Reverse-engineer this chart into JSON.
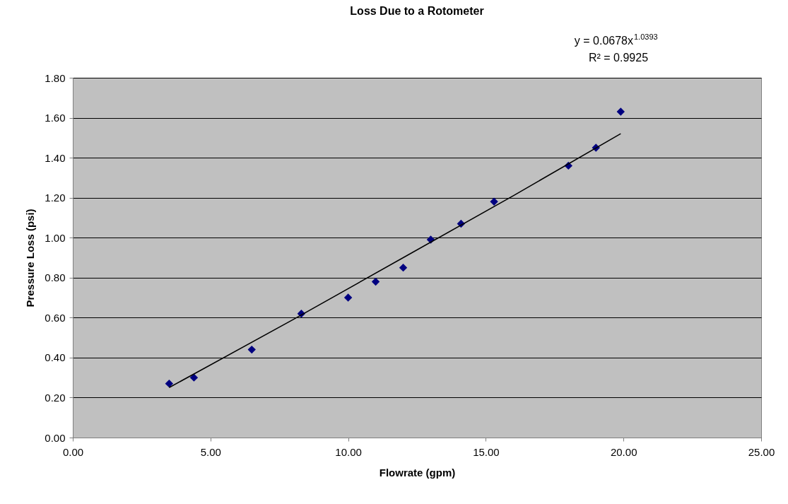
{
  "chart_data": {
    "type": "scatter",
    "title": "Loss Due to a Rotometer",
    "xlabel": "Flowrate (gpm)",
    "ylabel": "Pressure Loss (psi)",
    "annotations": [
      "y = 0.0678x$^{1.0393}$",
      "R² = 0.9925"
    ],
    "xlim": [
      0,
      25
    ],
    "ylim": [
      0,
      1.8
    ],
    "xticks": [
      {
        "value": 0,
        "label": "0.00"
      },
      {
        "value": 5,
        "label": "5.00"
      },
      {
        "value": 10,
        "label": "10.00"
      },
      {
        "value": 15,
        "label": "15.00"
      },
      {
        "value": 20,
        "label": "20.00"
      },
      {
        "value": 25,
        "label": "25.00"
      }
    ],
    "yticks": [
      {
        "value": 0,
        "label": "0.00"
      },
      {
        "value": 0.2,
        "label": "0.20"
      },
      {
        "value": 0.4,
        "label": "0.40"
      },
      {
        "value": 0.6,
        "label": "0.60"
      },
      {
        "value": 0.8,
        "label": "0.80"
      },
      {
        "value": 1.0,
        "label": "1.00"
      },
      {
        "value": 1.2,
        "label": "1.20"
      },
      {
        "value": 1.4,
        "label": "1.40"
      },
      {
        "value": 1.6,
        "label": "1.60"
      },
      {
        "value": 1.8,
        "label": "1.80"
      }
    ],
    "grid": "y",
    "series": [
      {
        "type": "scatter",
        "marker": "diamond",
        "color": "#000080",
        "x": [
          3.5,
          4.4,
          6.5,
          8.3,
          10.0,
          11.0,
          12.0,
          13.0,
          14.1,
          15.3,
          18.0,
          19.0,
          19.9
        ],
        "values": [
          0.27,
          0.3,
          0.44,
          0.62,
          0.7,
          0.78,
          0.85,
          0.99,
          1.07,
          1.18,
          1.36,
          1.45,
          1.63
        ]
      },
      {
        "type": "line",
        "marker": "none",
        "line_style": "solid",
        "color": "#000000",
        "x": [
          3.5,
          8.0,
          12.0,
          16.0,
          19.9
        ],
        "values": [
          0.25,
          0.59,
          0.9,
          1.21,
          1.52
        ]
      }
    ]
  }
}
